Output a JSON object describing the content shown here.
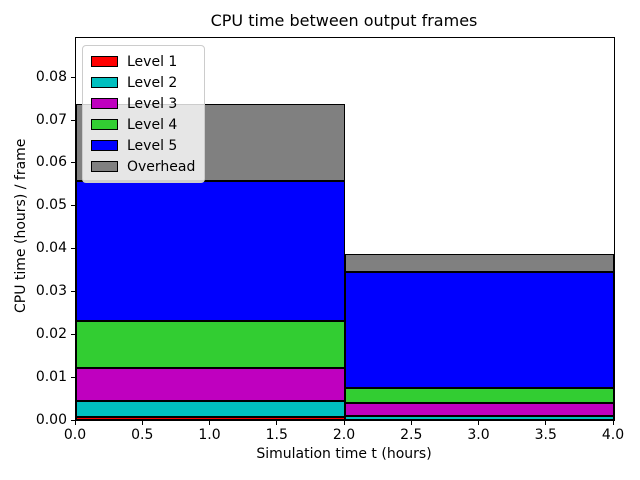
{
  "chart_data": {
    "type": "bar",
    "title": "CPU time between output frames",
    "xlabel": "Simulation time t (hours)",
    "ylabel": "CPU time (hours) / frame",
    "xlim": [
      0,
      4.0
    ],
    "ylim": [
      0,
      0.089
    ],
    "grid": false,
    "legend_position": "upper left",
    "bar_edge_color": "#000000",
    "xticks": {
      "values": [
        0,
        0.5,
        1.0,
        1.5,
        2.0,
        2.5,
        3.0,
        3.5,
        4.0
      ],
      "labels": [
        "0.0",
        "0.5",
        "1.0",
        "1.5",
        "2.0",
        "2.5",
        "3.0",
        "3.5",
        "4.0"
      ]
    },
    "yticks": {
      "values": [
        0,
        0.01,
        0.02,
        0.03,
        0.04,
        0.05,
        0.06,
        0.07,
        0.08
      ],
      "labels": [
        "0.00",
        "0.01",
        "0.02",
        "0.03",
        "0.04",
        "0.05",
        "0.06",
        "0.07",
        "0.08"
      ]
    },
    "bars": [
      {
        "x_start": 0,
        "x_end": 2
      },
      {
        "x_start": 2,
        "x_end": 4
      }
    ],
    "series": [
      {
        "name": "Level 1",
        "color": "#ff0000",
        "values": [
          0.0008,
          0.0001
        ]
      },
      {
        "name": "Level 2",
        "color": "#00bfbf",
        "values": [
          0.0037,
          0.0008
        ]
      },
      {
        "name": "Level 3",
        "color": "#bf00bf",
        "values": [
          0.0077,
          0.0031
        ]
      },
      {
        "name": "Level 4",
        "color": "#32cd32",
        "values": [
          0.0108,
          0.0035
        ]
      },
      {
        "name": "Level 5",
        "color": "#0000ff",
        "values": [
          0.0327,
          0.0269
        ]
      },
      {
        "name": "Overhead",
        "color": "#808080",
        "values": [
          0.018,
          0.0043
        ]
      }
    ]
  }
}
